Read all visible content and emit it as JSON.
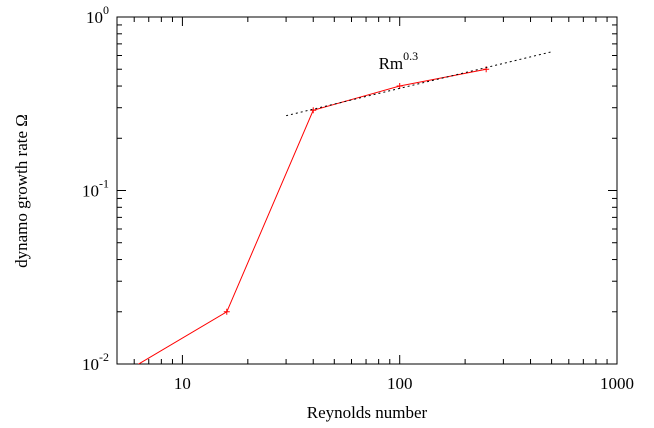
{
  "chart_data": {
    "type": "line",
    "xlabel": "Reynolds number",
    "ylabel": "dynamo growth rate Ω",
    "xscale": "log",
    "yscale": "log",
    "xlim": [
      5,
      1000
    ],
    "ylim": [
      0.01,
      1
    ],
    "grid": false,
    "x_ticks": [
      {
        "value": 10,
        "label": "10"
      },
      {
        "value": 100,
        "label": "100"
      },
      {
        "value": 1000,
        "label": "1000"
      }
    ],
    "y_ticks": [
      {
        "value": 0.01,
        "base": "10",
        "exp": "-2"
      },
      {
        "value": 0.1,
        "base": "10",
        "exp": "-1"
      },
      {
        "value": 1,
        "base": "10",
        "exp": "0"
      }
    ],
    "series": [
      {
        "style": "solid",
        "color": "#ff0000",
        "x": [
          6.2,
          16,
          40,
          100,
          250
        ],
        "y": [
          0.0099,
          0.02,
          0.29,
          0.4,
          0.5
        ]
      },
      {
        "style": "dotted",
        "color": "#000000",
        "x": [
          30,
          500
        ],
        "y": [
          0.27,
          0.63
        ]
      }
    ],
    "annotation": {
      "base": "Rm",
      "exp": "0.3",
      "x": 80,
      "y": 0.5
    }
  }
}
